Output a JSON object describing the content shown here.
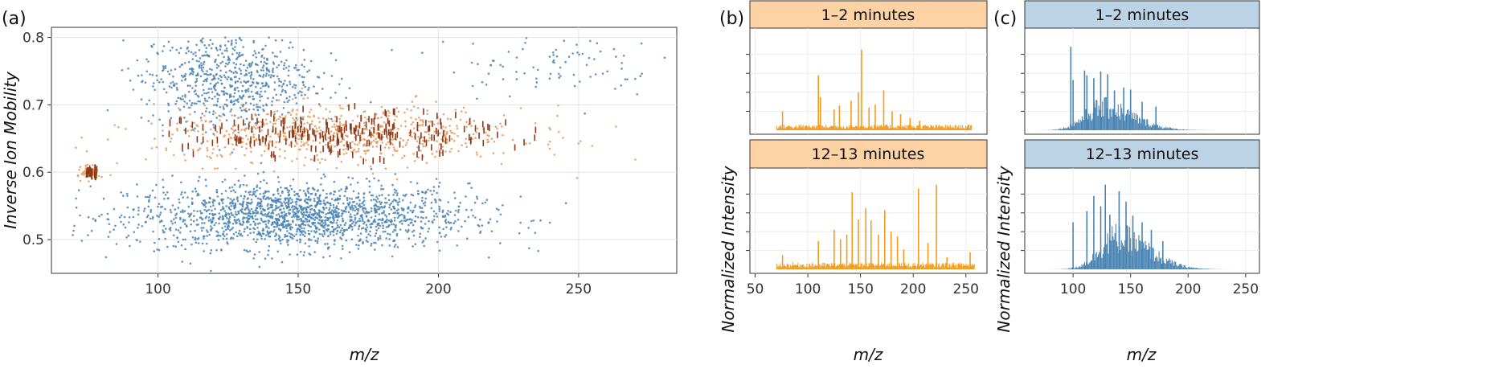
{
  "chart_data": [
    {
      "panel": "(a)",
      "type": "scatter",
      "xlabel": "m/z",
      "ylabel": "Inverse Ion Mobility",
      "xlim": [
        62,
        285
      ],
      "ylim": [
        0.45,
        0.815
      ],
      "x_ticks": [
        100,
        150,
        200,
        250
      ],
      "y_ticks": [
        0.5,
        0.6,
        0.7,
        0.8
      ],
      "grid": true,
      "colors": {
        "background_features": "#4a84b3",
        "selected_features": "#e89a5c",
        "dense_selected": "#8b3a1a"
      },
      "series": [
        {
          "color_role": "background_features",
          "clusters": [
            {
              "x_center": 150,
              "x_spread": 55,
              "y_center": 0.535,
              "y_spread": 0.04,
              "density": "high"
            },
            {
              "x_center": 125,
              "x_spread": 28,
              "y_center": 0.74,
              "y_spread": 0.06,
              "density": "medium"
            },
            {
              "x_center": 240,
              "x_spread": 35,
              "y_center": 0.76,
              "y_spread": 0.04,
              "density": "low"
            }
          ]
        },
        {
          "color_role": "selected_features",
          "clusters": [
            {
              "x_center": 165,
              "x_spread": 60,
              "y_center": 0.655,
              "y_spread": 0.035,
              "density": "medium"
            },
            {
              "x_center": 76,
              "x_spread": 3,
              "y_center": 0.6,
              "y_spread": 0.008,
              "density": "low"
            }
          ]
        }
      ]
    },
    {
      "panel": "(b)",
      "type": "bar",
      "xlabel": "m/z",
      "ylabel": "Normalized Intensity",
      "x_ticks": [
        50,
        100,
        150,
        200,
        250
      ],
      "xlim": [
        45,
        270
      ],
      "color": "#f39c1f",
      "strip_color": "#fdd2a4",
      "facets": [
        {
          "strip_label": "1–2 minutes",
          "ylim": [
            0,
            1
          ],
          "peaks": [
            {
              "x": 76,
              "y": 0.2
            },
            {
              "x": 110,
              "y": 0.58
            },
            {
              "x": 112,
              "y": 0.35
            },
            {
              "x": 125,
              "y": 0.22
            },
            {
              "x": 130,
              "y": 0.26
            },
            {
              "x": 141,
              "y": 0.31
            },
            {
              "x": 148,
              "y": 0.4
            },
            {
              "x": 151,
              "y": 0.85
            },
            {
              "x": 158,
              "y": 0.24
            },
            {
              "x": 164,
              "y": 0.27
            },
            {
              "x": 172,
              "y": 0.42
            },
            {
              "x": 180,
              "y": 0.2
            },
            {
              "x": 188,
              "y": 0.17
            },
            {
              "x": 197,
              "y": 0.13
            },
            {
              "x": 206,
              "y": 0.1
            }
          ],
          "baseline": {
            "x_min": 70,
            "x_max": 255,
            "level": 0.05
          }
        },
        {
          "strip_label": "12–13 minutes",
          "ylim": [
            0,
            1
          ],
          "peaks": [
            {
              "x": 76,
              "y": 0.15
            },
            {
              "x": 110,
              "y": 0.3
            },
            {
              "x": 125,
              "y": 0.42
            },
            {
              "x": 131,
              "y": 0.32
            },
            {
              "x": 137,
              "y": 0.37
            },
            {
              "x": 142,
              "y": 0.82
            },
            {
              "x": 148,
              "y": 0.53
            },
            {
              "x": 155,
              "y": 0.65
            },
            {
              "x": 160,
              "y": 0.52
            },
            {
              "x": 167,
              "y": 0.37
            },
            {
              "x": 173,
              "y": 0.63
            },
            {
              "x": 179,
              "y": 0.4
            },
            {
              "x": 185,
              "y": 0.35
            },
            {
              "x": 191,
              "y": 0.21
            },
            {
              "x": 205,
              "y": 0.86
            },
            {
              "x": 214,
              "y": 0.28
            },
            {
              "x": 222,
              "y": 0.9
            },
            {
              "x": 232,
              "y": 0.13
            },
            {
              "x": 254,
              "y": 0.18
            }
          ],
          "baseline": {
            "x_min": 70,
            "x_max": 258,
            "level": 0.06
          }
        }
      ]
    },
    {
      "panel": "(c)",
      "type": "bar",
      "xlabel": "m/z",
      "ylabel": "Normalized Intensity",
      "x_ticks": [
        100,
        150,
        200,
        250
      ],
      "xlim": [
        58,
        262
      ],
      "color": "#4a84b3",
      "strip_color": "#bcd2e5",
      "facets": [
        {
          "strip_label": "1–2 minutes",
          "ylim": [
            0,
            1
          ],
          "envelope": {
            "x_min": 70,
            "x_max": 245,
            "peak_x": 125,
            "peak_y": 0.32
          },
          "peaks": [
            {
              "x": 98,
              "y": 0.88
            },
            {
              "x": 100,
              "y": 0.53
            },
            {
              "x": 110,
              "y": 0.63
            },
            {
              "x": 112,
              "y": 0.58
            },
            {
              "x": 118,
              "y": 0.55
            },
            {
              "x": 124,
              "y": 0.62
            },
            {
              "x": 130,
              "y": 0.59
            },
            {
              "x": 136,
              "y": 0.42
            },
            {
              "x": 144,
              "y": 0.45
            },
            {
              "x": 150,
              "y": 0.43
            },
            {
              "x": 160,
              "y": 0.3
            },
            {
              "x": 172,
              "y": 0.25
            }
          ]
        },
        {
          "strip_label": "12–13 minutes",
          "ylim": [
            0,
            1
          ],
          "envelope": {
            "x_min": 72,
            "x_max": 245,
            "peak_x": 138,
            "peak_y": 0.45
          },
          "peaks": [
            {
              "x": 100,
              "y": 0.5
            },
            {
              "x": 112,
              "y": 0.62
            },
            {
              "x": 118,
              "y": 0.78
            },
            {
              "x": 124,
              "y": 0.67
            },
            {
              "x": 128,
              "y": 0.9
            },
            {
              "x": 132,
              "y": 0.58
            },
            {
              "x": 140,
              "y": 0.83
            },
            {
              "x": 146,
              "y": 0.72
            },
            {
              "x": 152,
              "y": 0.57
            },
            {
              "x": 160,
              "y": 0.5
            },
            {
              "x": 168,
              "y": 0.42
            },
            {
              "x": 178,
              "y": 0.3
            }
          ]
        }
      ]
    }
  ]
}
